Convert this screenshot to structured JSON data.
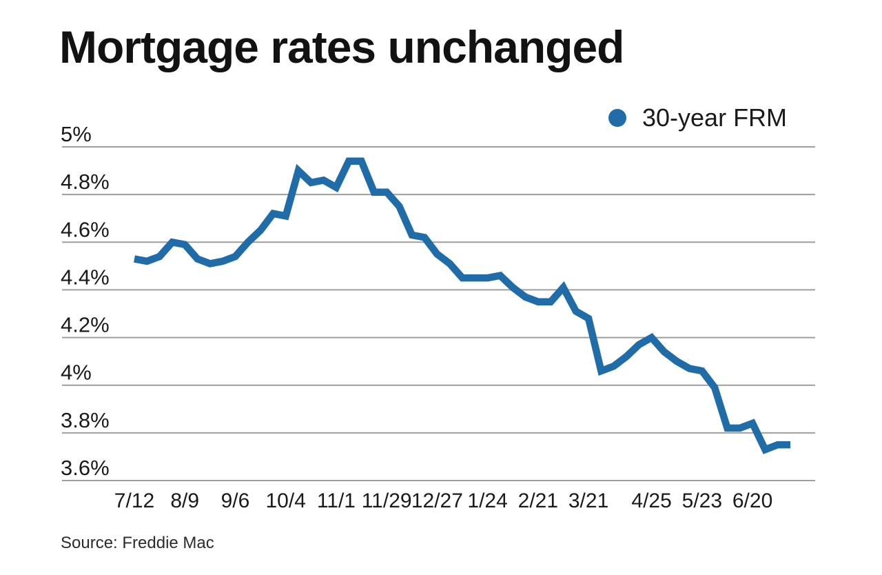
{
  "title": "Mortgage rates unchanged",
  "source": "Source: Freddie Mac",
  "legend": {
    "label": "30-year FRM",
    "marker": "dot"
  },
  "colors": {
    "line": "#1f6ca8",
    "legend_dot": "#1f6ca8",
    "grid": "#9e9e9e",
    "text": "#1a1a1a"
  },
  "chart_data": {
    "type": "line",
    "title": "Mortgage rates unchanged",
    "xlabel": "",
    "ylabel": "",
    "ylim": [
      3.6,
      5.0
    ],
    "grid": true,
    "legend_position": "top-right",
    "y_ticks": [
      "5%",
      "4.8%",
      "4.6%",
      "4.4%",
      "4.2%",
      "4%",
      "3.8%",
      "3.6%"
    ],
    "y_tick_values": [
      5.0,
      4.8,
      4.6,
      4.4,
      4.2,
      4.0,
      3.8,
      3.6
    ],
    "x_tick_labels": [
      "7/12",
      "8/9",
      "9/6",
      "10/4",
      "11/1",
      "11/29",
      "12/27",
      "1/24",
      "2/21",
      "3/21",
      "4/25",
      "5/23",
      "6/20"
    ],
    "x_tick_indices": [
      0,
      4,
      8,
      12,
      16,
      20,
      24,
      28,
      32,
      36,
      41,
      45,
      49
    ],
    "series": [
      {
        "name": "30-year FRM",
        "values": [
          4.53,
          4.52,
          4.54,
          4.6,
          4.59,
          4.53,
          4.51,
          4.52,
          4.54,
          4.6,
          4.65,
          4.72,
          4.71,
          4.9,
          4.85,
          4.86,
          4.83,
          4.94,
          4.94,
          4.81,
          4.81,
          4.75,
          4.63,
          4.62,
          4.55,
          4.51,
          4.45,
          4.45,
          4.45,
          4.46,
          4.41,
          4.37,
          4.35,
          4.35,
          4.41,
          4.31,
          4.28,
          4.06,
          4.08,
          4.12,
          4.17,
          4.2,
          4.14,
          4.1,
          4.07,
          4.06,
          3.99,
          3.82,
          3.82,
          3.84,
          3.73,
          3.75,
          3.75
        ]
      }
    ]
  }
}
